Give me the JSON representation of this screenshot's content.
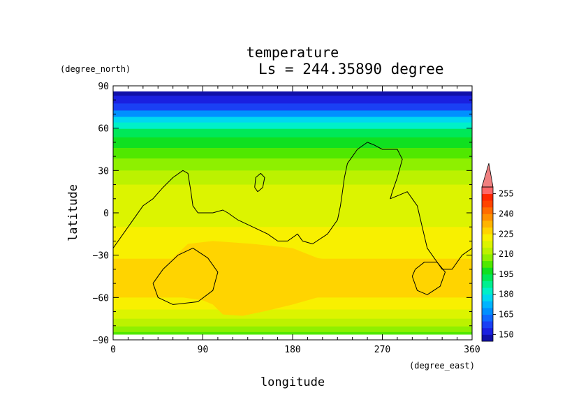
{
  "chart_data": {
    "type": "heatmap",
    "title": "temperature",
    "subtitle": "Ls = 244.35890 degree",
    "xlabel": "longitude",
    "ylabel": "latitude",
    "x_unit": "(degree_east)",
    "y_unit": "(degree_north)",
    "xlim": [
      0,
      360
    ],
    "ylim": [
      -90,
      90
    ],
    "x_ticks": [
      0,
      90,
      180,
      270,
      360
    ],
    "y_ticks": [
      -90,
      -60,
      -30,
      0,
      30,
      60,
      90
    ],
    "x_tick_labels": [
      "0",
      "90",
      "180",
      "270",
      "360"
    ],
    "y_tick_labels": [
      "−90",
      "−60",
      "−30",
      "0",
      "30",
      "60",
      "90"
    ],
    "data_lat_range": [
      -86,
      86
    ],
    "colorbar": {
      "levels": [
        145,
        150,
        155,
        160,
        165,
        170,
        175,
        180,
        185,
        190,
        195,
        200,
        205,
        210,
        215,
        220,
        225,
        230,
        235,
        240,
        245,
        250,
        255,
        260
      ],
      "labels": [
        "150",
        "165",
        "180",
        "195",
        "210",
        "225",
        "240",
        "255"
      ],
      "label_values": [
        150,
        165,
        180,
        195,
        210,
        225,
        240,
        255
      ],
      "colors": [
        "#1010a8",
        "#1a20e0",
        "#1a40f4",
        "#0e68ff",
        "#0090ff",
        "#00b4ff",
        "#00d8f0",
        "#00f0c8",
        "#00ef90",
        "#00e858",
        "#10e020",
        "#50e800",
        "#8ef000",
        "#bcf200",
        "#dcf400",
        "#f8f000",
        "#ffd400",
        "#ffb400",
        "#ff9000",
        "#ff6c00",
        "#ff4400",
        "#ff2800",
        "#ff6868"
      ],
      "extend_max_color": "#f08080"
    },
    "temperature_by_lat": [
      {
        "lat": 86,
        "value": 148
      },
      {
        "lat": 80,
        "value": 150
      },
      {
        "lat": 75,
        "value": 158
      },
      {
        "lat": 70,
        "value": 167
      },
      {
        "lat": 66,
        "value": 175
      },
      {
        "lat": 62,
        "value": 182
      },
      {
        "lat": 57,
        "value": 190
      },
      {
        "lat": 50,
        "value": 198
      },
      {
        "lat": 42,
        "value": 204
      },
      {
        "lat": 35,
        "value": 208
      },
      {
        "lat": 25,
        "value": 214
      },
      {
        "lat": 15,
        "value": 217
      },
      {
        "lat": 5,
        "value": 218
      },
      {
        "lat": -5,
        "value": 219
      },
      {
        "lat": -15,
        "value": 221
      },
      {
        "lat": -25,
        "value": 224
      },
      {
        "lat": -40,
        "value": 227
      },
      {
        "lat": -55,
        "value": 225
      },
      {
        "lat": -65,
        "value": 223
      },
      {
        "lat": -72,
        "value": 219
      },
      {
        "lat": -78,
        "value": 212
      },
      {
        "lat": -83,
        "value": 205
      },
      {
        "lat": -86,
        "value": 200
      }
    ],
    "warm_region": {
      "value": 228,
      "outline": [
        [
          45,
          -48
        ],
        [
          60,
          -32
        ],
        [
          75,
          -22
        ],
        [
          100,
          -20
        ],
        [
          140,
          -22
        ],
        [
          180,
          -25
        ],
        [
          205,
          -32
        ],
        [
          222,
          -34
        ],
        [
          240,
          -42
        ],
        [
          230,
          -52
        ],
        [
          205,
          -60
        ],
        [
          180,
          -65
        ],
        [
          150,
          -70
        ],
        [
          130,
          -73
        ],
        [
          110,
          -72
        ],
        [
          100,
          -65
        ],
        [
          90,
          -62
        ],
        [
          70,
          -60
        ],
        [
          52,
          -56
        ]
      ]
    },
    "contours": [
      {
        "name": "contour-west",
        "points": [
          [
            0,
            -25
          ],
          [
            10,
            -15
          ],
          [
            20,
            -5
          ],
          [
            30,
            5
          ],
          [
            40,
            10
          ],
          [
            50,
            18
          ],
          [
            60,
            25
          ],
          [
            70,
            30
          ],
          [
            75,
            28
          ],
          [
            78,
            15
          ],
          [
            80,
            5
          ],
          [
            85,
            0
          ],
          [
            100,
            0
          ],
          [
            110,
            2
          ],
          [
            115,
            0
          ],
          [
            125,
            -5
          ],
          [
            140,
            -10
          ],
          [
            155,
            -15
          ],
          [
            165,
            -20
          ],
          [
            175,
            -20
          ],
          [
            185,
            -15
          ],
          [
            190,
            -20
          ],
          [
            200,
            -22
          ],
          [
            215,
            -15
          ],
          [
            225,
            -5
          ],
          [
            228,
            5
          ],
          [
            230,
            15
          ],
          [
            232,
            25
          ],
          [
            235,
            35
          ],
          [
            245,
            45
          ],
          [
            255,
            50
          ],
          [
            262,
            48
          ],
          [
            270,
            45
          ],
          [
            285,
            45
          ],
          [
            290,
            38
          ],
          [
            285,
            25
          ],
          [
            280,
            15
          ],
          [
            278,
            10
          ],
          [
            285,
            12
          ],
          [
            295,
            15
          ],
          [
            305,
            5
          ],
          [
            310,
            -10
          ],
          [
            315,
            -25
          ],
          [
            320,
            -30
          ],
          [
            330,
            -40
          ],
          [
            340,
            -40
          ],
          [
            350,
            -30
          ],
          [
            360,
            -25
          ]
        ]
      },
      {
        "name": "contour-island",
        "points": [
          [
            142,
            18
          ],
          [
            145,
            15
          ],
          [
            150,
            18
          ],
          [
            152,
            25
          ],
          [
            148,
            28
          ],
          [
            143,
            25
          ],
          [
            142,
            18
          ]
        ]
      },
      {
        "name": "contour-loop-south-west",
        "points": [
          [
            40,
            -50
          ],
          [
            45,
            -60
          ],
          [
            60,
            -65
          ],
          [
            85,
            -63
          ],
          [
            100,
            -55
          ],
          [
            105,
            -42
          ],
          [
            95,
            -32
          ],
          [
            80,
            -25
          ],
          [
            65,
            -30
          ],
          [
            50,
            -40
          ],
          [
            40,
            -50
          ]
        ]
      },
      {
        "name": "contour-loop-south-east",
        "points": [
          [
            300,
            -45
          ],
          [
            305,
            -55
          ],
          [
            315,
            -58
          ],
          [
            328,
            -52
          ],
          [
            333,
            -42
          ],
          [
            325,
            -35
          ],
          [
            312,
            -35
          ],
          [
            303,
            -40
          ],
          [
            300,
            -45
          ]
        ]
      }
    ]
  }
}
